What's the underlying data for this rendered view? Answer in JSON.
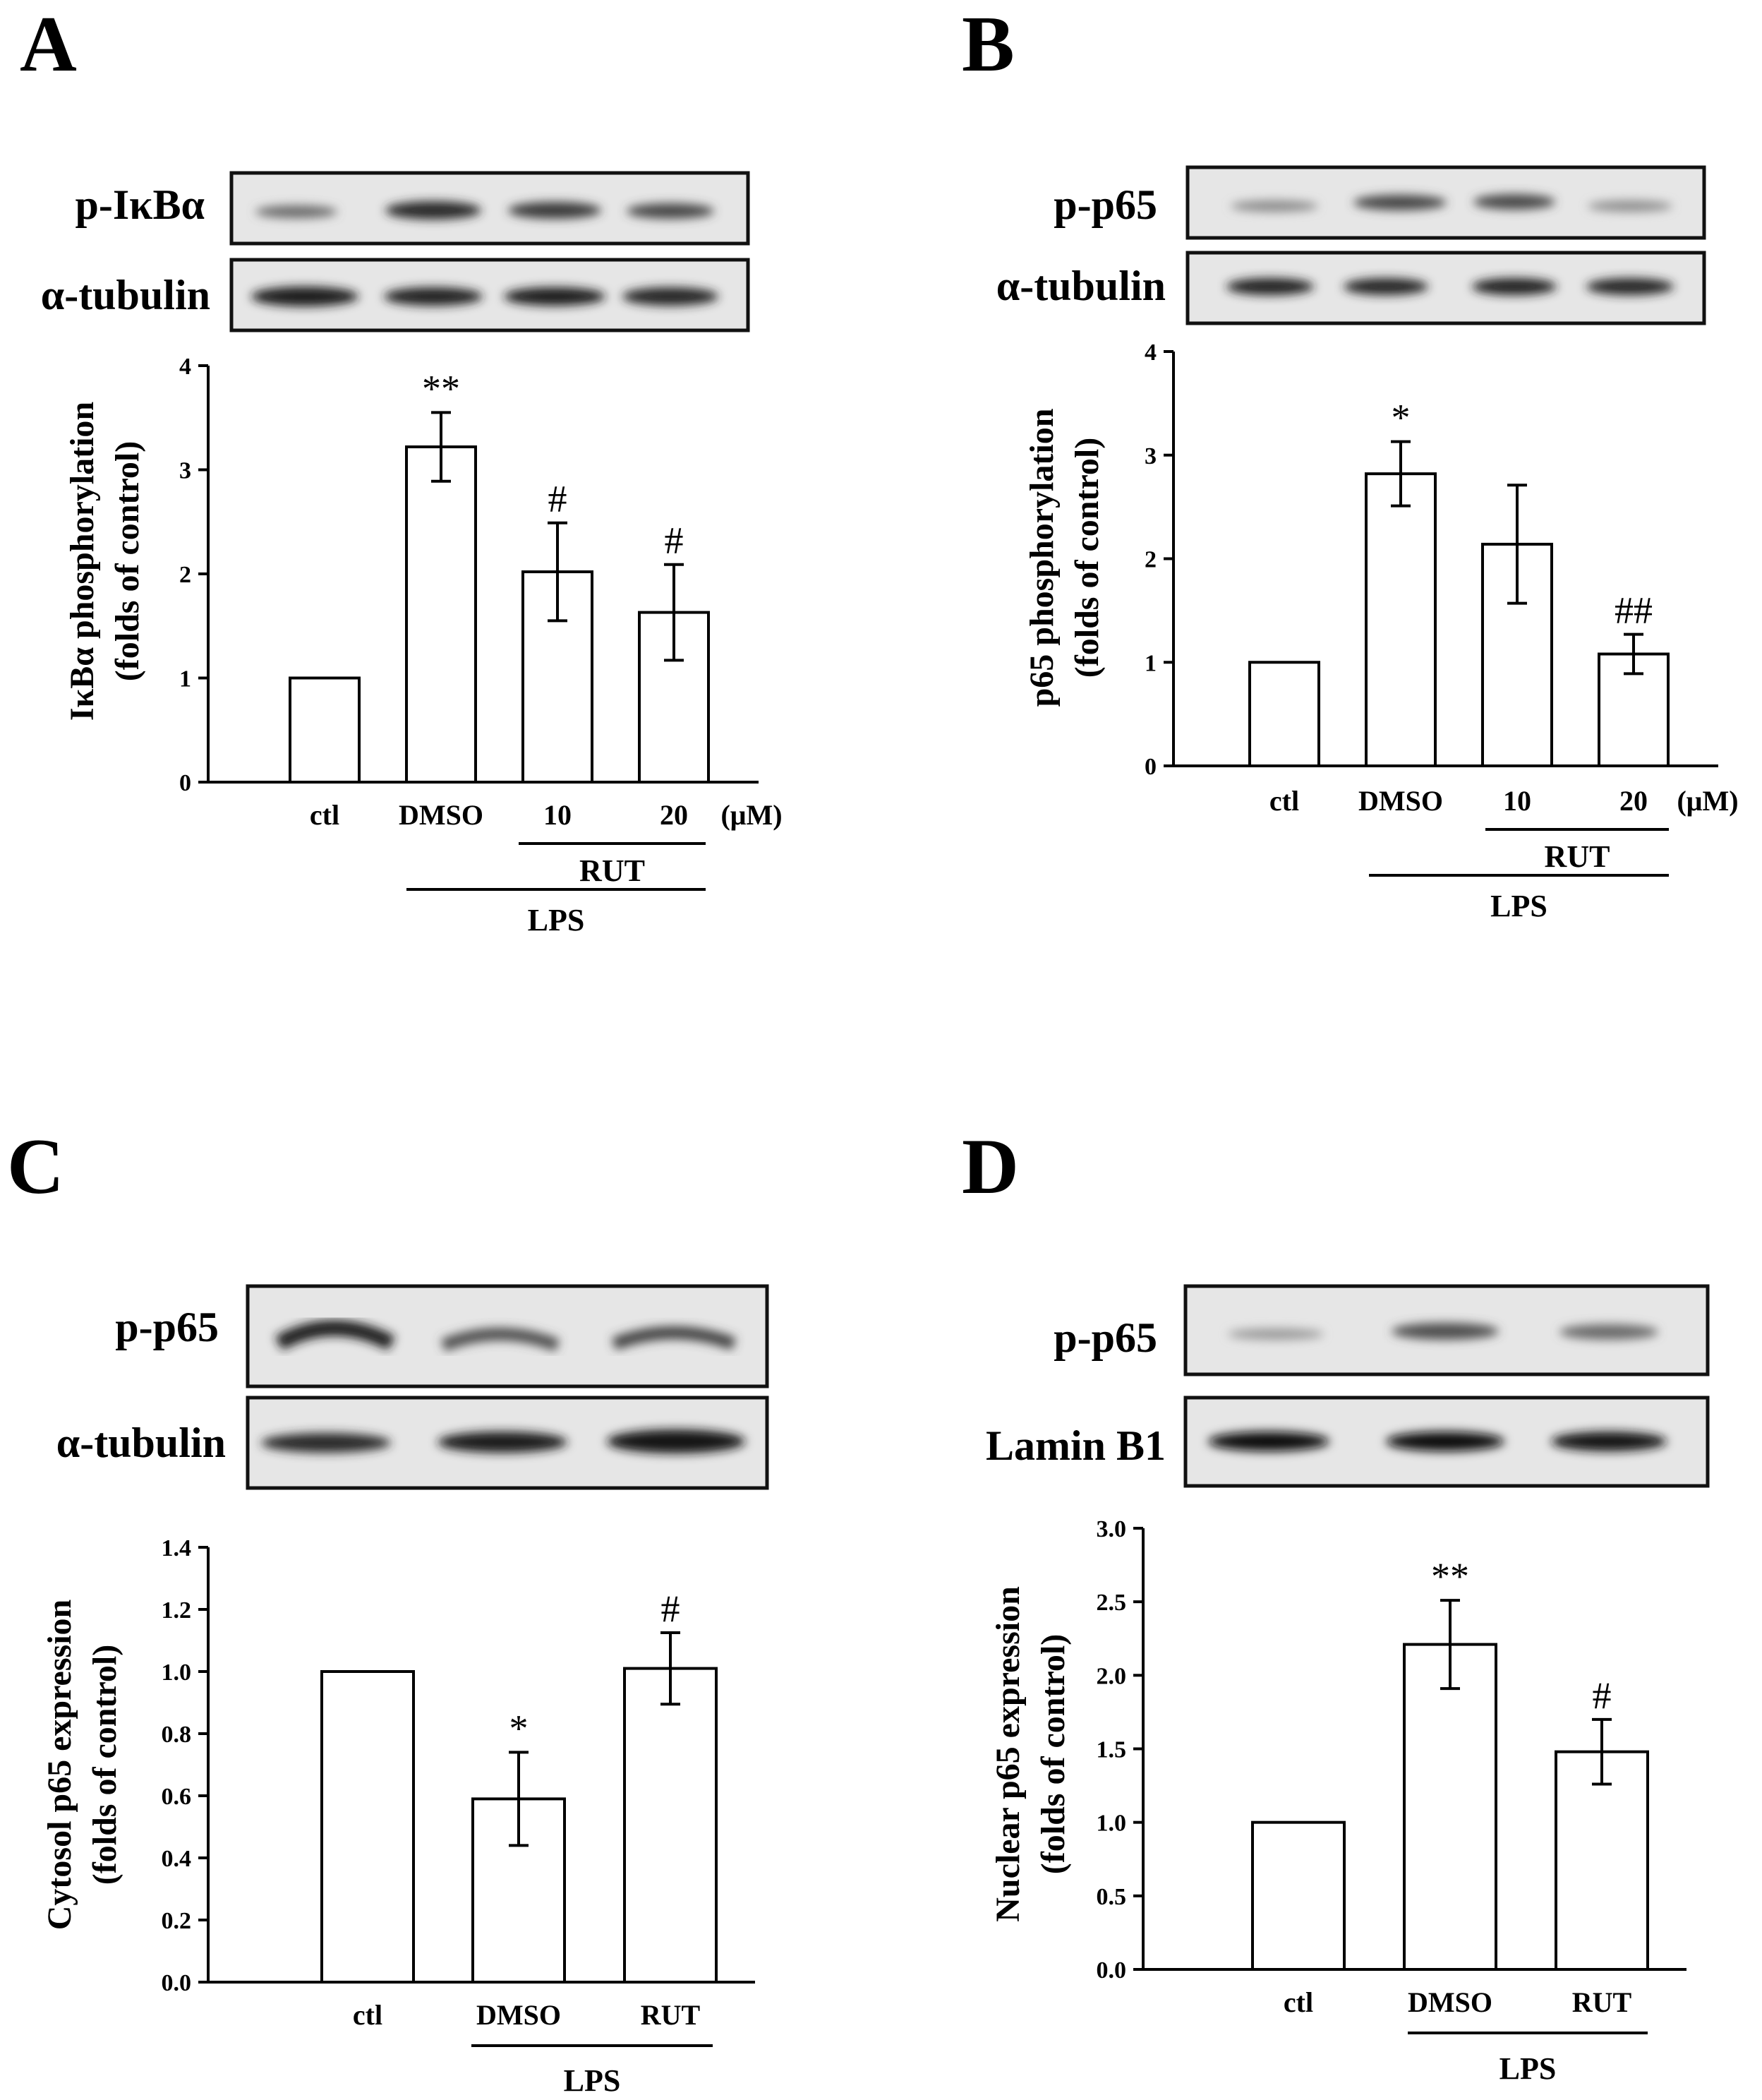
{
  "figure": {
    "panels": [
      {
        "letter": "A",
        "blot_labels": [
          "p-IκBα",
          "α-tubulin"
        ],
        "ylabel_line1": "IκBα phosphorylation",
        "ylabel_line2": "(folds of control)",
        "unit_label": "(μM)",
        "group_labels": [
          "RUT",
          "LPS"
        ]
      },
      {
        "letter": "B",
        "blot_labels": [
          "p-p65",
          "α-tubulin"
        ],
        "ylabel_line1": "p65 phosphorylation",
        "ylabel_line2": "(folds of control)",
        "unit_label": "(μM)",
        "group_labels": [
          "RUT",
          "LPS"
        ]
      },
      {
        "letter": "C",
        "blot_labels": [
          "p-p65",
          "α-tubulin"
        ],
        "ylabel_line1": "Cytosol p65 expression",
        "ylabel_line2": "(folds of control)",
        "unit_label": "",
        "group_labels": [
          "LPS"
        ]
      },
      {
        "letter": "D",
        "blot_labels": [
          "p-p65",
          "Lamin B1"
        ],
        "ylabel_line1": "Nuclear p65 expression",
        "ylabel_line2": "(folds of control)",
        "unit_label": "",
        "group_labels": [
          "LPS"
        ]
      }
    ]
  },
  "chart_data": [
    {
      "panel": "A",
      "type": "bar",
      "categories": [
        "ctl",
        "DMSO",
        "10",
        "20"
      ],
      "values": [
        1.0,
        3.22,
        2.02,
        1.63
      ],
      "errors": [
        0,
        0.33,
        0.47,
        0.46
      ],
      "significance": [
        "",
        "**",
        "#",
        "#"
      ],
      "ylabel": "IκBα phosphorylation (folds of control)",
      "ylim": [
        0,
        4
      ],
      "yticks": [
        "0",
        "1",
        "2",
        "3",
        "4"
      ],
      "unit": "(μM)",
      "groups": [
        {
          "label": "RUT",
          "from": 2,
          "to": 3
        },
        {
          "label": "LPS",
          "from": 1,
          "to": 3
        }
      ]
    },
    {
      "panel": "B",
      "type": "bar",
      "categories": [
        "ctl",
        "DMSO",
        "10",
        "20"
      ],
      "values": [
        1.0,
        2.82,
        2.14,
        1.08
      ],
      "errors": [
        0,
        0.31,
        0.57,
        0.19
      ],
      "significance": [
        "",
        "*",
        "",
        "##"
      ],
      "ylabel": "p65 phosphorylation (folds of control)",
      "ylim": [
        0,
        4
      ],
      "yticks": [
        "0",
        "1",
        "2",
        "3",
        "4"
      ],
      "unit": "(μM)",
      "groups": [
        {
          "label": "RUT",
          "from": 2,
          "to": 3
        },
        {
          "label": "LPS",
          "from": 1,
          "to": 3
        }
      ]
    },
    {
      "panel": "C",
      "type": "bar",
      "categories": [
        "ctl",
        "DMSO",
        "RUT"
      ],
      "values": [
        1.0,
        0.59,
        1.01
      ],
      "errors": [
        0,
        0.15,
        0.115
      ],
      "significance": [
        "",
        "*",
        "#"
      ],
      "ylabel": "Cytosol p65 expression (folds of control)",
      "ylim": [
        0,
        1.4
      ],
      "yticks": [
        "0.0",
        "0.2",
        "0.4",
        "0.6",
        "0.8",
        "1.0",
        "1.2",
        "1.4"
      ],
      "groups": [
        {
          "label": "LPS",
          "from": 1,
          "to": 2
        }
      ]
    },
    {
      "panel": "D",
      "type": "bar",
      "categories": [
        "ctl",
        "DMSO",
        "RUT"
      ],
      "values": [
        1.0,
        2.21,
        1.48
      ],
      "errors": [
        0,
        0.3,
        0.22
      ],
      "significance": [
        "",
        "**",
        "#"
      ],
      "ylabel": "Nuclear p65 expression (folds of control)",
      "ylim": [
        0,
        3.0
      ],
      "yticks": [
        "0.0",
        "0.5",
        "1.0",
        "1.5",
        "2.0",
        "2.5",
        "3.0"
      ],
      "groups": [
        {
          "label": "LPS",
          "from": 1,
          "to": 2
        }
      ]
    }
  ]
}
